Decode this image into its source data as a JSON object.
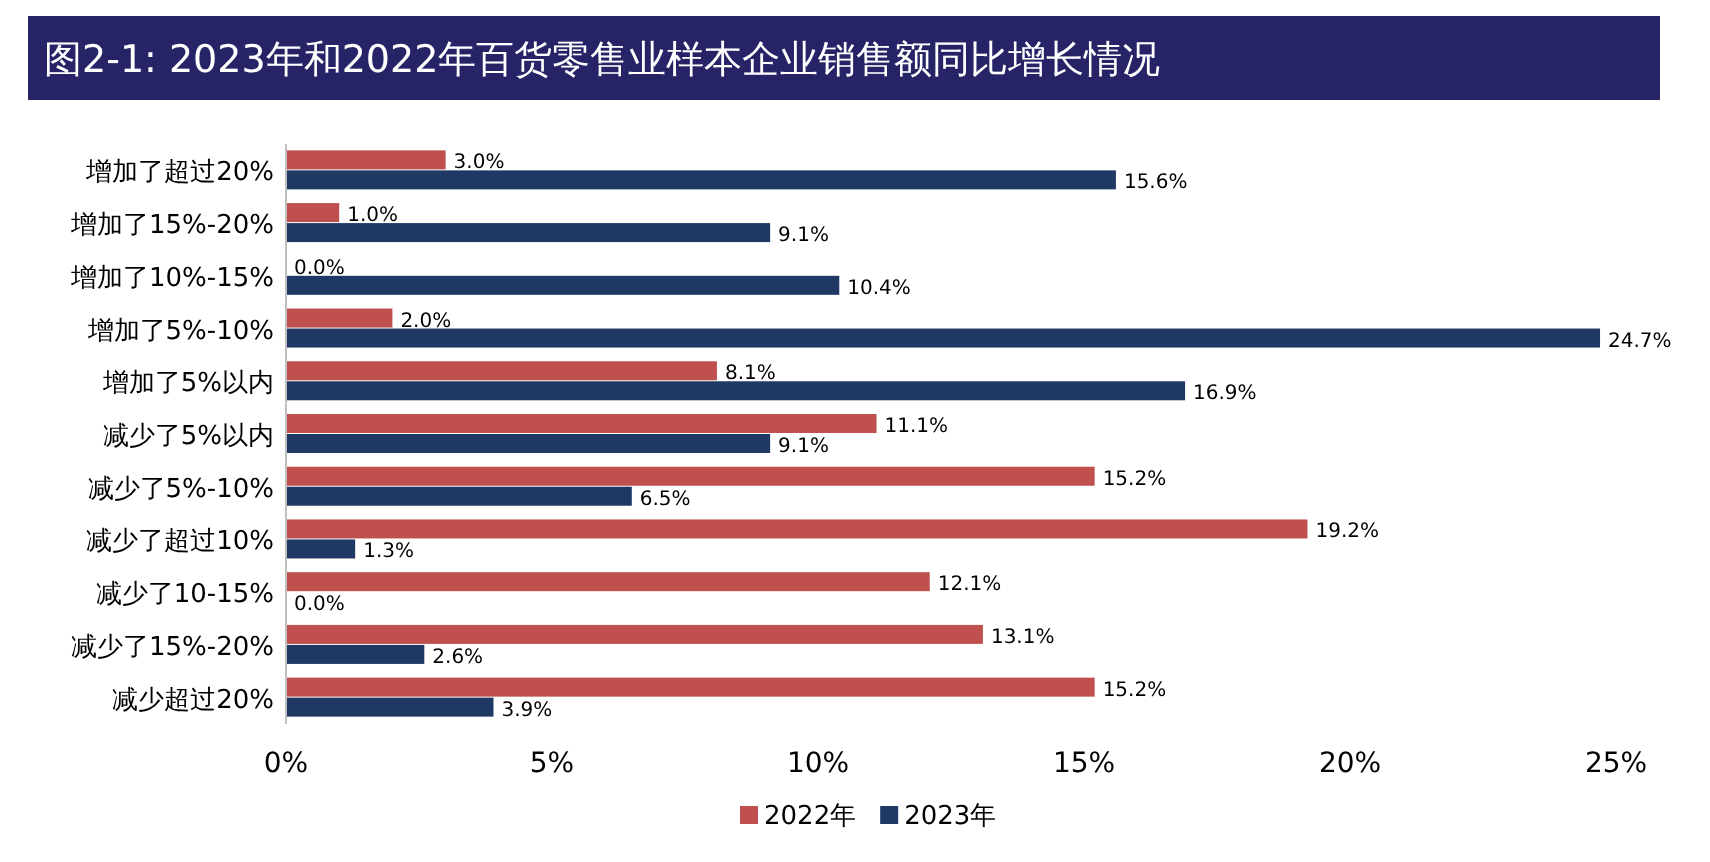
{
  "chart_data": {
    "type": "bar",
    "orientation": "horizontal",
    "title": "图2-1: 2023年和2022年百货零售业样本企业销售额同比增长情况",
    "categories": [
      "增加了超过20%",
      "增加了15%-20%",
      "增加了10%-15%",
      "增加了5%-10%",
      "增加了5%以内",
      "减少了5%以内",
      "减少了5%-10%",
      "减少了超过10%",
      "减少了10-15%",
      "减少了15%-20%",
      "减少超过20%"
    ],
    "series": [
      {
        "name": "2022年",
        "color": "#c0504d",
        "values": [
          3.0,
          1.0,
          0.0,
          2.0,
          8.1,
          11.1,
          15.2,
          19.2,
          12.1,
          13.1,
          15.2
        ],
        "value_labels": [
          "3.0%",
          "1.0%",
          "0.0%",
          "2.0%",
          "8.1%",
          "11.1%",
          "15.2%",
          "19.2%",
          "12.1%",
          "13.1%",
          "15.2%"
        ]
      },
      {
        "name": "2023年",
        "color": "#1f3864",
        "values": [
          15.6,
          9.1,
          10.4,
          24.7,
          16.9,
          9.1,
          6.5,
          1.3,
          0.0,
          2.6,
          3.9
        ],
        "value_labels": [
          "15.6%",
          "9.1%",
          "10.4%",
          "24.7%",
          "16.9%",
          "9.1%",
          "6.5%",
          "1.3%",
          "0.0%",
          "2.6%",
          "3.9%"
        ]
      }
    ],
    "xlim": [
      0,
      25
    ],
    "xticks": [
      {
        "value": 0,
        "label": "0%"
      },
      {
        "value": 5,
        "label": "5%"
      },
      {
        "value": 10,
        "label": "10%"
      },
      {
        "value": 15,
        "label": "15%"
      },
      {
        "value": 20,
        "label": "20%"
      },
      {
        "value": 25,
        "label": "25%"
      }
    ],
    "grid": false,
    "legend": "bottom"
  }
}
